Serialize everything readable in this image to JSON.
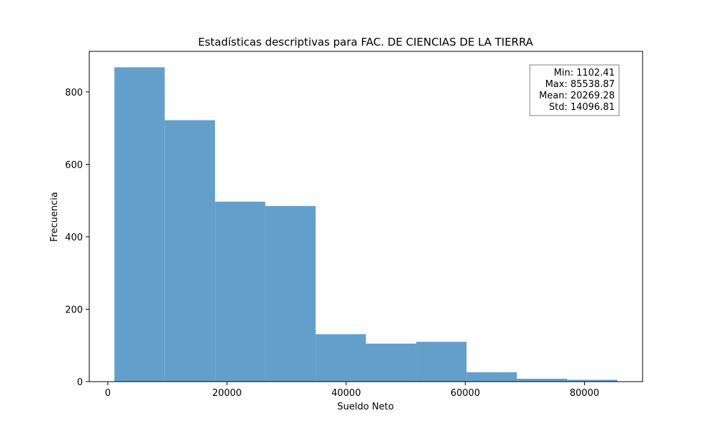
{
  "chart_data": {
    "type": "bar",
    "title": "Estadísticas descriptivas para FAC. DE CIENCIAS DE LA TIERRA",
    "xlabel": "Sueldo Neto",
    "ylabel": "Frecuencia",
    "bin_edges": [
      1102.41,
      9546.06,
      17989.71,
      26433.35,
      34877.0,
      43320.64,
      51764.29,
      60207.94,
      68651.58,
      77095.23,
      85538.87
    ],
    "values": [
      868,
      722,
      497,
      485,
      131,
      105,
      110,
      26,
      8,
      5
    ],
    "xlim": [
      -3119.41,
      89760.69
    ],
    "ylim": [
      0,
      912
    ],
    "xticks": [
      0,
      20000,
      40000,
      60000,
      80000
    ],
    "xtick_labels": [
      "0",
      "20000",
      "40000",
      "60000",
      "80000"
    ],
    "yticks": [
      0,
      200,
      400,
      600,
      800
    ],
    "ytick_labels": [
      "0",
      "200",
      "400",
      "600",
      "800"
    ],
    "bar_color": "#62a0cb",
    "grid": false,
    "stats_box": {
      "placement": "top-right",
      "lines": [
        "Min: 1102.41",
        "Max: 85538.87",
        "Mean: 20269.28",
        "Std: 14096.81"
      ]
    }
  }
}
